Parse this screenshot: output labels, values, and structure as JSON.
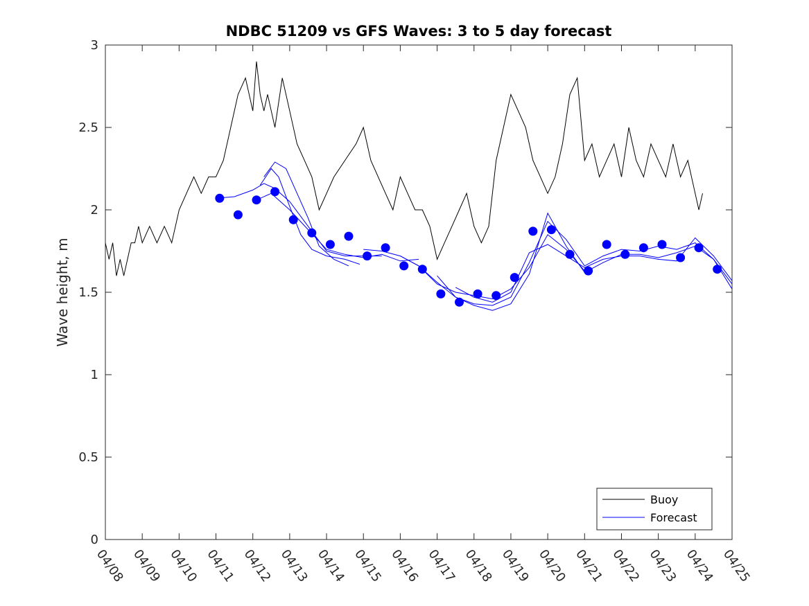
{
  "chart_data": {
    "type": "line",
    "title": "NDBC 51209 vs GFS Waves: 3 to 5 day forecast",
    "xlabel": "",
    "ylabel": "Wave height, m",
    "xlim": [
      0,
      17
    ],
    "ylim": [
      0,
      3
    ],
    "yticks": [
      0,
      0.5,
      1,
      1.5,
      2,
      2.5,
      3
    ],
    "ytick_labels": [
      "0",
      "0.5",
      "1",
      "1.5",
      "2",
      "2.5",
      "3"
    ],
    "xtick_labels": [
      "04/08",
      "04/09",
      "04/10",
      "04/11",
      "04/12",
      "04/13",
      "04/14",
      "04/15",
      "04/16",
      "04/17",
      "04/18",
      "04/19",
      "04/20",
      "04/21",
      "04/22",
      "04/23",
      "04/24",
      "04/25"
    ],
    "grid": false,
    "legend_position": "bottom-right",
    "colors": {
      "buoy": "#000000",
      "forecast": "#0000ff"
    },
    "series": [
      {
        "name": "Buoy",
        "style": "line",
        "x_unit": "days since 04/08 00:00",
        "x": [
          0,
          0.1,
          0.2,
          0.3,
          0.4,
          0.5,
          0.6,
          0.7,
          0.8,
          0.9,
          1.0,
          1.2,
          1.4,
          1.6,
          1.8,
          2.0,
          2.2,
          2.4,
          2.6,
          2.8,
          3.0,
          3.2,
          3.4,
          3.6,
          3.8,
          4.0,
          4.1,
          4.2,
          4.3,
          4.4,
          4.5,
          4.6,
          4.8,
          5.0,
          5.2,
          5.4,
          5.6,
          5.8,
          6.0,
          6.2,
          6.5,
          6.8,
          7.0,
          7.2,
          7.4,
          7.6,
          7.8,
          8.0,
          8.2,
          8.4,
          8.6,
          8.8,
          9.0,
          9.2,
          9.4,
          9.6,
          9.8,
          10.0,
          10.2,
          10.4,
          10.6,
          10.8,
          11.0,
          11.2,
          11.4,
          11.6,
          11.8,
          12.0,
          12.2,
          12.4,
          12.6,
          12.8,
          13.0,
          13.2,
          13.4,
          13.6,
          13.8,
          14.0,
          14.2,
          14.4,
          14.6,
          14.8,
          15.0,
          15.2,
          15.4,
          15.6,
          15.8,
          16.0,
          16.1,
          16.2
        ],
        "values": [
          1.8,
          1.7,
          1.8,
          1.6,
          1.7,
          1.6,
          1.7,
          1.8,
          1.8,
          1.9,
          1.8,
          1.9,
          1.8,
          1.9,
          1.8,
          2.0,
          2.1,
          2.2,
          2.1,
          2.2,
          2.2,
          2.3,
          2.5,
          2.7,
          2.8,
          2.6,
          2.9,
          2.7,
          2.6,
          2.7,
          2.6,
          2.5,
          2.8,
          2.6,
          2.4,
          2.3,
          2.2,
          2.0,
          2.1,
          2.2,
          2.3,
          2.4,
          2.5,
          2.3,
          2.2,
          2.1,
          2.0,
          2.2,
          2.1,
          2.0,
          2.0,
          1.9,
          1.7,
          1.8,
          1.9,
          2.0,
          2.1,
          1.9,
          1.8,
          1.9,
          2.3,
          2.5,
          2.7,
          2.6,
          2.5,
          2.3,
          2.2,
          2.1,
          2.2,
          2.4,
          2.7,
          2.8,
          2.3,
          2.4,
          2.2,
          2.3,
          2.4,
          2.2,
          2.5,
          2.3,
          2.2,
          2.4,
          2.3,
          2.2,
          2.4,
          2.2,
          2.3,
          2.1,
          2.0,
          2.1
        ]
      },
      {
        "name": "Forecast",
        "style": "line",
        "x_unit": "days since 04/08 00:00",
        "runs": [
          {
            "x": [
              3.0,
              3.5,
              4.0,
              4.3,
              4.6,
              5.0,
              5.5,
              6.0,
              6.5,
              7.0,
              7.5
            ],
            "values": [
              2.07,
              2.08,
              2.12,
              2.16,
              2.13,
              2.05,
              1.9,
              1.75,
              1.72,
              1.72,
              1.72
            ]
          },
          {
            "x": [
              4.0,
              4.5,
              5.0,
              5.5,
              6.0,
              6.5,
              7.0,
              7.5,
              8.0,
              8.5
            ],
            "values": [
              2.05,
              2.1,
              2.0,
              1.88,
              1.76,
              1.73,
              1.71,
              1.73,
              1.69,
              1.7
            ]
          },
          {
            "x": [
              4.2,
              4.5,
              4.7,
              5.0,
              5.3,
              5.6,
              6.0,
              6.5,
              6.9
            ],
            "values": [
              2.15,
              2.25,
              2.2,
              2.02,
              1.85,
              1.76,
              1.72,
              1.7,
              1.67
            ]
          },
          {
            "x": [
              4.3,
              4.6,
              4.9,
              5.2,
              5.5,
              5.8,
              6.2,
              6.6
            ],
            "values": [
              2.2,
              2.29,
              2.25,
              2.1,
              1.95,
              1.78,
              1.7,
              1.66
            ]
          },
          {
            "x": [
              7.0,
              7.5,
              8.0,
              8.5,
              9.0,
              9.5,
              10.0,
              10.5,
              11.0,
              11.5,
              12.0,
              12.5,
              13.0
            ],
            "values": [
              1.76,
              1.75,
              1.72,
              1.66,
              1.55,
              1.5,
              1.48,
              1.46,
              1.52,
              1.65,
              1.85,
              1.76,
              1.63
            ]
          },
          {
            "x": [
              8.0,
              8.5,
              9.0,
              9.5,
              10.0,
              10.5,
              11.0,
              11.5,
              12.0,
              12.5,
              13.0,
              13.5,
              14.0,
              14.5,
              15.0,
              15.5,
              16.0,
              16.5,
              17.0
            ],
            "values": [
              1.72,
              1.66,
              1.56,
              1.47,
              1.43,
              1.42,
              1.47,
              1.68,
              1.93,
              1.82,
              1.66,
              1.72,
              1.76,
              1.75,
              1.78,
              1.76,
              1.8,
              1.7,
              1.55
            ]
          },
          {
            "x": [
              9.0,
              9.5,
              10.0,
              10.5,
              11.0,
              11.5,
              12.0,
              12.5,
              13.0,
              13.5,
              14.0,
              14.5,
              15.0,
              15.5,
              16.0,
              16.5,
              17.0
            ],
            "values": [
              1.6,
              1.47,
              1.42,
              1.39,
              1.43,
              1.61,
              1.98,
              1.78,
              1.62,
              1.68,
              1.73,
              1.73,
              1.71,
              1.74,
              1.78,
              1.7,
              1.52
            ]
          },
          {
            "x": [
              9.5,
              10.0,
              10.5,
              11.0,
              11.5,
              12.0,
              12.5,
              13.0,
              13.5,
              14.0,
              14.5,
              15.0,
              15.5,
              16.0,
              16.5,
              17.0
            ],
            "values": [
              1.53,
              1.47,
              1.44,
              1.5,
              1.74,
              1.79,
              1.72,
              1.65,
              1.7,
              1.72,
              1.72,
              1.7,
              1.69,
              1.83,
              1.72,
              1.57
            ]
          }
        ]
      },
      {
        "name": "Forecast markers",
        "style": "markers",
        "x": [
          3.1,
          3.6,
          4.1,
          4.6,
          5.1,
          5.6,
          6.1,
          6.6,
          7.1,
          7.6,
          8.1,
          8.6,
          9.1,
          9.6,
          10.1,
          10.6,
          11.1,
          11.6,
          12.1,
          12.6,
          13.1,
          13.6,
          14.1,
          14.6,
          15.1,
          15.6,
          16.1,
          16.6
        ],
        "values": [
          2.07,
          1.97,
          2.06,
          2.11,
          1.94,
          1.86,
          1.79,
          1.84,
          1.72,
          1.77,
          1.66,
          1.64,
          1.49,
          1.44,
          1.49,
          1.48,
          1.59,
          1.87,
          1.88,
          1.73,
          1.63,
          1.79,
          1.73,
          1.77,
          1.79,
          1.71,
          1.77,
          1.64
        ]
      }
    ],
    "legend": [
      {
        "label": "Buoy",
        "color": "#000000"
      },
      {
        "label": "Forecast",
        "color": "#0000ff"
      }
    ]
  }
}
